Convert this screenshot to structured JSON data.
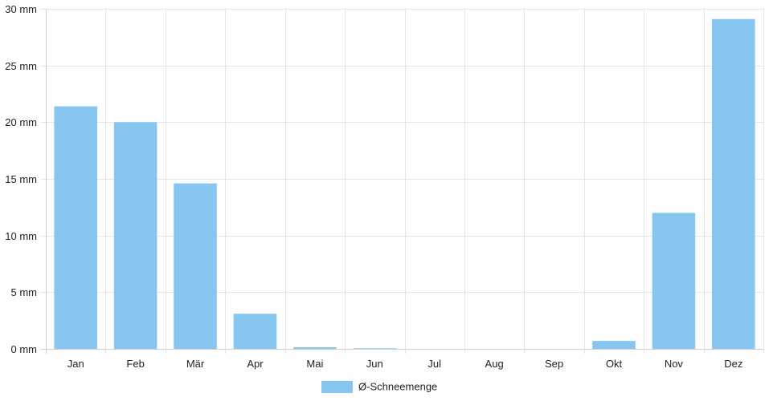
{
  "chart_data": {
    "type": "bar",
    "categories": [
      "Jan",
      "Feb",
      "Mär",
      "Apr",
      "Mai",
      "Jun",
      "Jul",
      "Aug",
      "Sep",
      "Okt",
      "Nov",
      "Dez"
    ],
    "series": [
      {
        "name": "Ø-Schneemenge",
        "values": [
          21.4,
          20.0,
          14.6,
          3.1,
          0.15,
          0.05,
          0,
          0,
          0,
          0.7,
          12.0,
          29.1
        ],
        "color": "#87c6f1"
      }
    ],
    "y_ticks": [
      "0 mm",
      "5 mm",
      "10 mm",
      "15 mm",
      "20 mm",
      "25 mm",
      "30 mm"
    ],
    "ylim": [
      0,
      30
    ],
    "grid": true,
    "legend_position": "bottom-center",
    "title": "",
    "xlabel": "",
    "ylabel": ""
  }
}
